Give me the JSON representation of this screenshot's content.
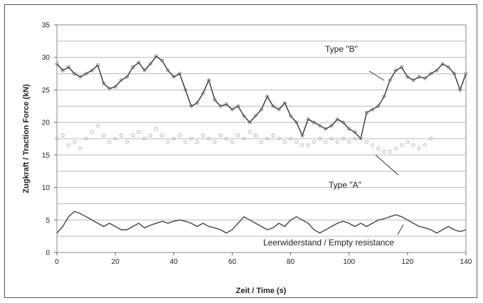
{
  "chart_data": {
    "type": "line",
    "title": "",
    "xlabel": "Zeit / Time (s)",
    "ylabel": "Zugkraft / Traction Force (kN)",
    "xlim": [
      0,
      140
    ],
    "ylim": [
      0,
      35
    ],
    "x_ticks": [
      "0",
      "20",
      "40",
      "60",
      "80",
      "100",
      "120",
      "140"
    ],
    "y_ticks": [
      "0",
      "5",
      "10",
      "15",
      "20",
      "25",
      "30",
      "35"
    ],
    "grid": "horizontal",
    "series": [
      {
        "name": "Type \"B\"",
        "color": "#333333",
        "style": "line-with-markers",
        "points": [
          [
            0,
            29
          ],
          [
            2,
            28
          ],
          [
            4,
            28.5
          ],
          [
            6,
            27.5
          ],
          [
            8,
            27
          ],
          [
            10,
            27.5
          ],
          [
            12,
            28
          ],
          [
            14,
            28.8
          ],
          [
            16,
            26
          ],
          [
            18,
            25.2
          ],
          [
            20,
            25.5
          ],
          [
            22,
            26.5
          ],
          [
            24,
            27
          ],
          [
            26,
            28.5
          ],
          [
            28,
            29.2
          ],
          [
            30,
            28
          ],
          [
            32,
            29
          ],
          [
            34,
            30.2
          ],
          [
            36,
            29.5
          ],
          [
            38,
            28
          ],
          [
            40,
            27
          ],
          [
            42,
            27.5
          ],
          [
            44,
            25
          ],
          [
            46,
            22.5
          ],
          [
            48,
            23
          ],
          [
            50,
            24.5
          ],
          [
            52,
            26.5
          ],
          [
            54,
            23.5
          ],
          [
            56,
            22.5
          ],
          [
            58,
            22.8
          ],
          [
            60,
            22
          ],
          [
            62,
            22.5
          ],
          [
            64,
            21
          ],
          [
            66,
            20
          ],
          [
            68,
            21
          ],
          [
            70,
            22
          ],
          [
            72,
            24
          ],
          [
            74,
            22.5
          ],
          [
            76,
            22
          ],
          [
            78,
            23
          ],
          [
            80,
            21
          ],
          [
            82,
            20
          ],
          [
            84,
            18
          ],
          [
            86,
            20.5
          ],
          [
            88,
            20
          ],
          [
            90,
            19.5
          ],
          [
            92,
            19
          ],
          [
            94,
            19.5
          ],
          [
            96,
            20.5
          ],
          [
            98,
            20
          ],
          [
            100,
            19
          ],
          [
            102,
            18.5
          ],
          [
            104,
            17.5
          ],
          [
            106,
            21.5
          ],
          [
            108,
            22
          ],
          [
            110,
            22.5
          ],
          [
            112,
            24
          ],
          [
            114,
            26.5
          ],
          [
            116,
            28
          ],
          [
            118,
            28.5
          ],
          [
            120,
            27
          ],
          [
            122,
            26.5
          ],
          [
            124,
            27
          ],
          [
            126,
            26.8
          ],
          [
            128,
            27.5
          ],
          [
            130,
            28
          ],
          [
            132,
            29
          ],
          [
            134,
            28.5
          ],
          [
            136,
            27.5
          ],
          [
            138,
            25
          ],
          [
            140,
            27.5
          ]
        ]
      },
      {
        "name": "Type \"A\"",
        "color": "#aaaaaa",
        "style": "markers",
        "points": [
          [
            0,
            17.5
          ],
          [
            2,
            18
          ],
          [
            4,
            16.5
          ],
          [
            6,
            17
          ],
          [
            8,
            16
          ],
          [
            10,
            17.5
          ],
          [
            12,
            18.5
          ],
          [
            14,
            19.5
          ],
          [
            16,
            18
          ],
          [
            18,
            17
          ],
          [
            20,
            17.5
          ],
          [
            22,
            18
          ],
          [
            24,
            17
          ],
          [
            26,
            18
          ],
          [
            28,
            18.5
          ],
          [
            30,
            17.5
          ],
          [
            32,
            18
          ],
          [
            34,
            19
          ],
          [
            36,
            18
          ],
          [
            38,
            17
          ],
          [
            40,
            17.5
          ],
          [
            42,
            18
          ],
          [
            44,
            17
          ],
          [
            46,
            17.5
          ],
          [
            48,
            17
          ],
          [
            50,
            18
          ],
          [
            52,
            17.5
          ],
          [
            54,
            17
          ],
          [
            56,
            18
          ],
          [
            58,
            17.5
          ],
          [
            60,
            17
          ],
          [
            62,
            18
          ],
          [
            64,
            17.5
          ],
          [
            66,
            18.5
          ],
          [
            68,
            18
          ],
          [
            70,
            17
          ],
          [
            72,
            17.5
          ],
          [
            74,
            18
          ],
          [
            76,
            17.5
          ],
          [
            78,
            17
          ],
          [
            80,
            17.5
          ],
          [
            82,
            17
          ],
          [
            84,
            16.5
          ],
          [
            86,
            16.5
          ],
          [
            88,
            17
          ],
          [
            90,
            17.5
          ],
          [
            92,
            17
          ],
          [
            94,
            17.5
          ],
          [
            96,
            17
          ],
          [
            98,
            17.5
          ],
          [
            100,
            17
          ],
          [
            102,
            17.5
          ],
          [
            104,
            17.5
          ],
          [
            106,
            17
          ],
          [
            108,
            16.5
          ],
          [
            110,
            16
          ],
          [
            112,
            15.5
          ],
          [
            114,
            15.5
          ],
          [
            116,
            16
          ],
          [
            118,
            16.5
          ],
          [
            120,
            17
          ],
          [
            122,
            16.5
          ],
          [
            124,
            16
          ],
          [
            126,
            16.5
          ],
          [
            128,
            17.5
          ]
        ]
      },
      {
        "name": "Leerwiderstand / Empty resistance",
        "color": "#444444",
        "style": "line",
        "points": [
          [
            0,
            3
          ],
          [
            2,
            4
          ],
          [
            4,
            5.5
          ],
          [
            6,
            6.3
          ],
          [
            8,
            6
          ],
          [
            10,
            5.5
          ],
          [
            12,
            5
          ],
          [
            14,
            4.5
          ],
          [
            16,
            4
          ],
          [
            18,
            4.5
          ],
          [
            20,
            4
          ],
          [
            22,
            3.5
          ],
          [
            24,
            3.5
          ],
          [
            26,
            4
          ],
          [
            28,
            4.5
          ],
          [
            30,
            3.8
          ],
          [
            32,
            4.2
          ],
          [
            34,
            4.5
          ],
          [
            36,
            4.8
          ],
          [
            38,
            4.5
          ],
          [
            40,
            4.8
          ],
          [
            42,
            5
          ],
          [
            44,
            4.8
          ],
          [
            46,
            4.5
          ],
          [
            48,
            4
          ],
          [
            50,
            4.5
          ],
          [
            52,
            4
          ],
          [
            54,
            3.8
          ],
          [
            56,
            3.5
          ],
          [
            58,
            3
          ],
          [
            60,
            3.5
          ],
          [
            62,
            4.5
          ],
          [
            64,
            5.5
          ],
          [
            66,
            5
          ],
          [
            68,
            4.5
          ],
          [
            70,
            4
          ],
          [
            72,
            3.5
          ],
          [
            74,
            3.8
          ],
          [
            76,
            4.5
          ],
          [
            78,
            4
          ],
          [
            80,
            5
          ],
          [
            82,
            5.5
          ],
          [
            84,
            5
          ],
          [
            86,
            4.5
          ],
          [
            88,
            3.5
          ],
          [
            90,
            3
          ],
          [
            92,
            3.5
          ],
          [
            94,
            4
          ],
          [
            96,
            4.5
          ],
          [
            98,
            4.8
          ],
          [
            100,
            4.5
          ],
          [
            102,
            4
          ],
          [
            104,
            4.5
          ],
          [
            106,
            4
          ],
          [
            108,
            4.5
          ],
          [
            110,
            5
          ],
          [
            112,
            5.2
          ],
          [
            114,
            5.5
          ],
          [
            116,
            5.8
          ],
          [
            118,
            5.5
          ],
          [
            120,
            5
          ],
          [
            122,
            4.5
          ],
          [
            124,
            4
          ],
          [
            126,
            3.8
          ],
          [
            128,
            3.5
          ],
          [
            130,
            3
          ],
          [
            132,
            3.5
          ],
          [
            134,
            4
          ],
          [
            136,
            3.5
          ],
          [
            138,
            3.2
          ],
          [
            140,
            3.5
          ]
        ]
      }
    ],
    "annotations": {
      "type_b": "Type \"B\"",
      "type_a": "Type \"A\"",
      "empty": "Leerwiderstand / Empty resistance"
    }
  }
}
